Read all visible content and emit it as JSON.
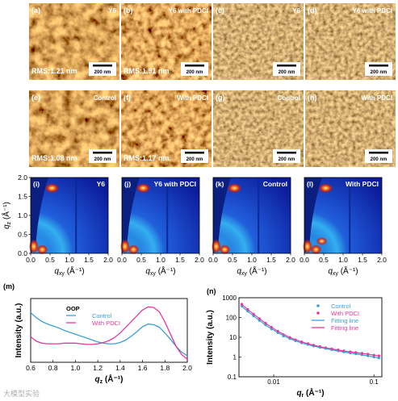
{
  "afm": {
    "panels": [
      {
        "label": "(a)",
        "title": "Y6",
        "rms": "RMS:1.21 nm",
        "scale": "200 nm",
        "kind": "height"
      },
      {
        "label": "(b)",
        "title": "Y6 with PDCI",
        "rms": "RMS:1.91 nm",
        "scale": "200 nm",
        "kind": "height"
      },
      {
        "label": "(c)",
        "title": "Y6",
        "rms": "",
        "scale": "200 nm",
        "kind": "phase"
      },
      {
        "label": "(d)",
        "title": "Y6 with PDCI",
        "rms": "",
        "scale": "200 nm",
        "kind": "phase"
      },
      {
        "label": "(e)",
        "title": "Control",
        "rms": "RMS:1.08 nm",
        "scale": "200 nm",
        "kind": "height"
      },
      {
        "label": "(f)",
        "title": "With PDCI",
        "rms": "RMS:1.17 nm",
        "scale": "200 nm",
        "kind": "height"
      },
      {
        "label": "(g)",
        "title": "Control",
        "rms": "",
        "scale": "200 nm",
        "kind": "phase"
      },
      {
        "label": "(h)",
        "title": "With PDCI",
        "rms": "",
        "scale": "200 nm",
        "kind": "phase"
      }
    ]
  },
  "giwaxs": {
    "panels": [
      {
        "label": "(i)",
        "title": "Y6"
      },
      {
        "label": "(j)",
        "title": "Y6 with PDCI"
      },
      {
        "label": "(k)",
        "title": "Control"
      },
      {
        "label": "(l)",
        "title": "With PDCI"
      }
    ],
    "ylabel_main": "q",
    "ylabel_sub": "z",
    "ylabel_unit": " (Å⁻¹)",
    "xlabel_main": "q",
    "xlabel_sub": "xy",
    "xlabel_unit": " (Å⁻¹)",
    "yticks": [
      "0.0",
      "0.5",
      "1.0",
      "1.5",
      "2.0"
    ],
    "xticks_first": [
      "0.0",
      "0.5",
      "1.0",
      "1.5",
      "2.0"
    ],
    "xticks_other": [
      "0.0",
      "0.5",
      "1.0",
      "1.5",
      "2.0"
    ]
  },
  "chart_data": [
    {
      "panel_label": "(m)",
      "type": "line",
      "title": "",
      "annotation": "OOP",
      "xlabel_main": "q",
      "xlabel_sub": "z",
      "xlabel_unit": " (Å⁻¹)",
      "ylabel": "Intensity (a.u.)",
      "xlim": [
        0.6,
        2.0
      ],
      "xticks": [
        "0.6",
        "0.8",
        "1.0",
        "1.2",
        "1.4",
        "1.6",
        "1.8",
        "2.0"
      ],
      "grid": false,
      "legend_position": "top-left",
      "series": [
        {
          "name": "Control",
          "color": "#3aa0d8",
          "x": [
            0.6,
            0.65,
            0.7,
            0.75,
            0.8,
            0.85,
            0.9,
            0.95,
            1.0,
            1.05,
            1.1,
            1.15,
            1.2,
            1.25,
            1.3,
            1.35,
            1.4,
            1.45,
            1.5,
            1.55,
            1.6,
            1.65,
            1.7,
            1.75,
            1.8,
            1.85,
            1.9,
            1.95,
            2.0
          ],
          "y": [
            0.78,
            0.7,
            0.64,
            0.6,
            0.57,
            0.54,
            0.5,
            0.47,
            0.44,
            0.41,
            0.38,
            0.35,
            0.32,
            0.3,
            0.29,
            0.29,
            0.31,
            0.35,
            0.41,
            0.48,
            0.56,
            0.6,
            0.59,
            0.55,
            0.46,
            0.36,
            0.25,
            0.16,
            0.1
          ]
        },
        {
          "name": "With PDCI",
          "color": "#e5399a",
          "x": [
            0.6,
            0.65,
            0.7,
            0.75,
            0.8,
            0.85,
            0.9,
            0.95,
            1.0,
            1.05,
            1.1,
            1.15,
            1.2,
            1.25,
            1.3,
            1.35,
            1.4,
            1.45,
            1.5,
            1.55,
            1.6,
            1.65,
            1.7,
            1.75,
            1.8,
            1.85,
            1.9,
            1.95,
            2.0
          ],
          "y": [
            0.4,
            0.33,
            0.3,
            0.29,
            0.29,
            0.29,
            0.3,
            0.3,
            0.3,
            0.29,
            0.28,
            0.28,
            0.29,
            0.31,
            0.34,
            0.39,
            0.46,
            0.55,
            0.64,
            0.73,
            0.82,
            0.87,
            0.86,
            0.79,
            0.63,
            0.44,
            0.25,
            0.12,
            0.05
          ]
        }
      ]
    },
    {
      "panel_label": "(n)",
      "type": "scatter",
      "title": "",
      "xlabel_main": "q",
      "xlabel_sub": "r",
      "xlabel_unit": " (Å⁻¹)",
      "ylabel": "Intensity (a.u.)",
      "xscale": "log",
      "yscale": "log",
      "xlim": [
        0.0045,
        0.12
      ],
      "ylim": [
        0.1,
        1000
      ],
      "xticks": [
        {
          "v": 0.01,
          "t": "0.01"
        },
        {
          "v": 0.1,
          "t": "0.1"
        }
      ],
      "yticks": [
        {
          "v": 1000,
          "t": "1000"
        },
        {
          "v": 100,
          "t": "100"
        },
        {
          "v": 10,
          "t": "10"
        },
        {
          "v": 1,
          "t": "1"
        },
        {
          "v": 0.1,
          "t": "0.1"
        }
      ],
      "grid": false,
      "legend_position": "top-right",
      "series": [
        {
          "name": "Control",
          "kind": "points",
          "color": "#3aa0d8",
          "x": [
            0.0048,
            0.0055,
            0.0063,
            0.0072,
            0.0083,
            0.0095,
            0.011,
            0.0125,
            0.0145,
            0.0165,
            0.019,
            0.022,
            0.025,
            0.029,
            0.033,
            0.038,
            0.044,
            0.05,
            0.058,
            0.066,
            0.076,
            0.087,
            0.1,
            0.112
          ],
          "y": [
            380,
            210,
            120,
            70,
            42,
            26,
            17,
            11.5,
            8.5,
            6.6,
            5.2,
            4.3,
            3.6,
            3.1,
            2.7,
            2.35,
            2.05,
            1.8,
            1.6,
            1.45,
            1.3,
            1.15,
            1.0,
            0.9
          ]
        },
        {
          "name": "With PDCI",
          "kind": "points",
          "color": "#e5399a",
          "x": [
            0.0048,
            0.0055,
            0.0063,
            0.0072,
            0.0083,
            0.0095,
            0.011,
            0.0125,
            0.0145,
            0.0165,
            0.019,
            0.022,
            0.025,
            0.029,
            0.033,
            0.038,
            0.044,
            0.05,
            0.058,
            0.066,
            0.076,
            0.087,
            0.1,
            0.112
          ],
          "y": [
            470,
            260,
            150,
            88,
            52,
            32,
            20.5,
            13.5,
            9.8,
            7.5,
            5.9,
            4.8,
            4.0,
            3.4,
            2.95,
            2.6,
            2.3,
            2.05,
            1.85,
            1.7,
            1.55,
            1.4,
            1.25,
            1.15
          ]
        },
        {
          "name": "Fitting line",
          "kind": "line",
          "color": "#3aa0d8",
          "x": [
            0.0048,
            0.0063,
            0.0083,
            0.011,
            0.0145,
            0.019,
            0.025,
            0.033,
            0.044,
            0.058,
            0.076,
            0.1,
            0.112
          ],
          "y": [
            360,
            118,
            41,
            17,
            8.3,
            5.1,
            3.55,
            2.65,
            2.0,
            1.58,
            1.28,
            1.0,
            0.9
          ]
        },
        {
          "name": "Fitting line",
          "kind": "line",
          "color": "#e5399a",
          "x": [
            0.0048,
            0.0063,
            0.0083,
            0.011,
            0.0145,
            0.019,
            0.025,
            0.033,
            0.044,
            0.058,
            0.076,
            0.1,
            0.112
          ],
          "y": [
            450,
            148,
            51,
            20,
            9.6,
            5.8,
            3.95,
            2.9,
            2.25,
            1.82,
            1.52,
            1.24,
            1.13
          ]
        }
      ]
    }
  ],
  "watermark": "大模型实验",
  "colors": {
    "control": "#3aa0d8",
    "pdci": "#e5399a"
  }
}
